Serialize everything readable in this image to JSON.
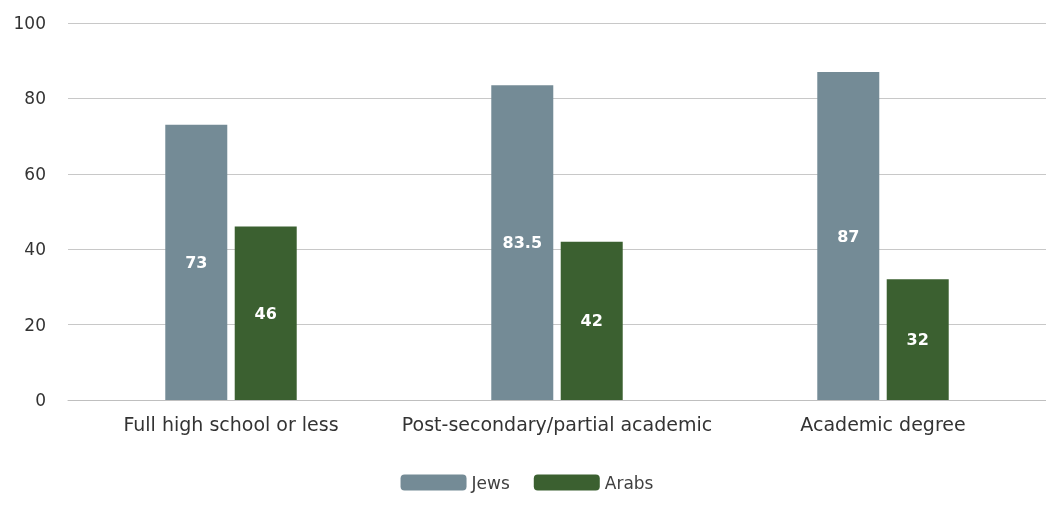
{
  "chart_data": {
    "type": "bar",
    "categories": [
      "Full high school or less",
      "Post-secondary/partial academic",
      "Academic degree"
    ],
    "series": [
      {
        "name": "Jews",
        "color": "#748b96",
        "values": [
          73,
          83.5,
          87
        ]
      },
      {
        "name": "Arabs",
        "color": "#3b6030",
        "values": [
          46,
          42,
          32
        ]
      }
    ],
    "ylim": [
      0,
      100
    ],
    "yticks": [
      0,
      20,
      40,
      60,
      80,
      100
    ],
    "grid": "y",
    "legend": "bottom",
    "data_labels": true
  }
}
